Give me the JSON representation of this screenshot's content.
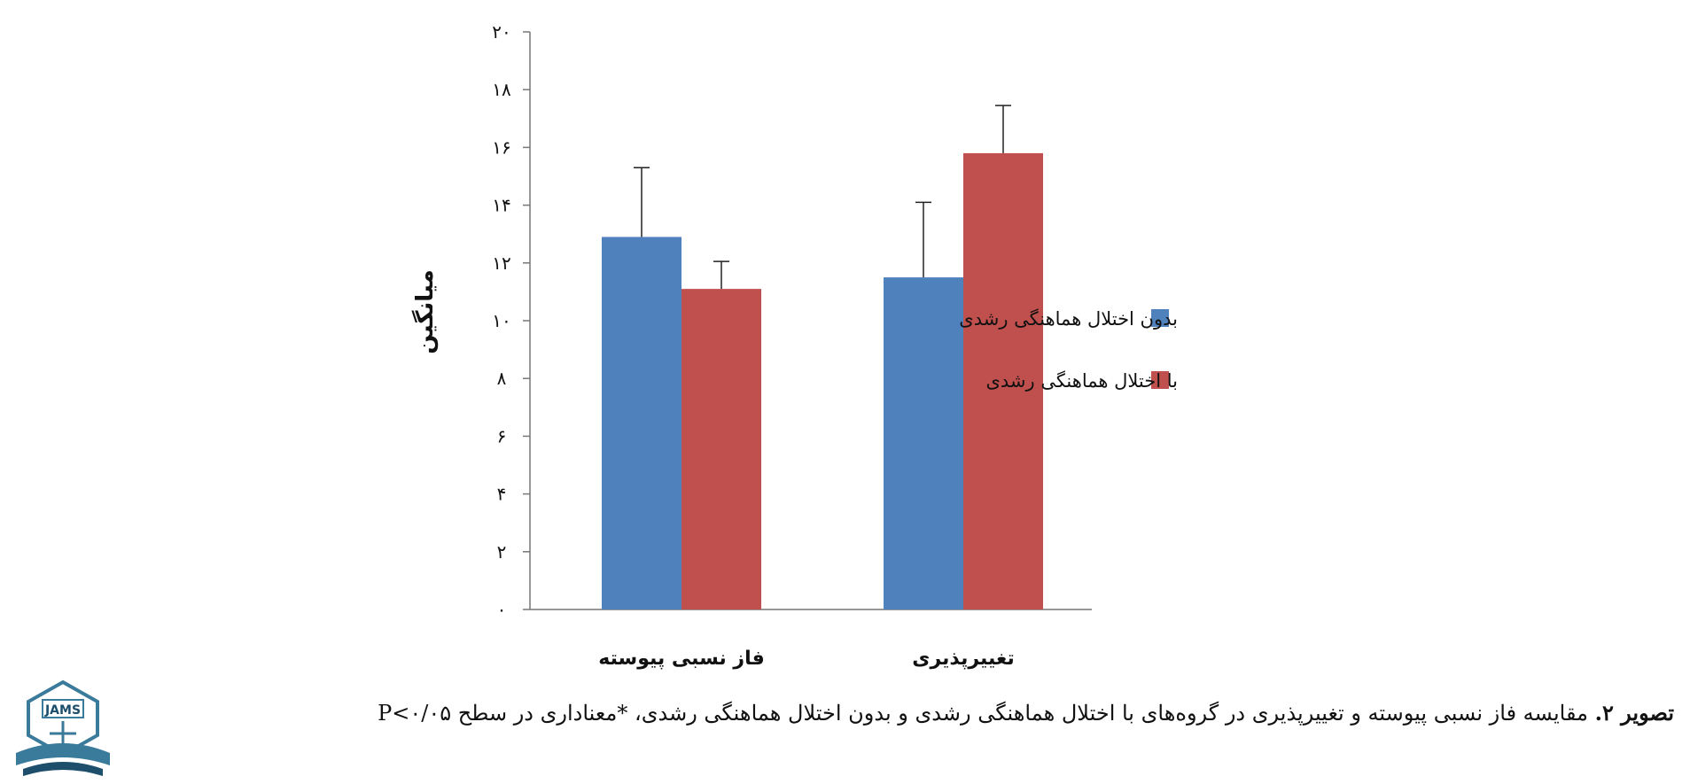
{
  "chart_data": {
    "type": "bar",
    "ylabel": "میانگین",
    "ylim": [
      0,
      20
    ],
    "yticks": [
      0,
      2,
      4,
      6,
      8,
      10,
      12,
      14,
      16,
      18,
      20
    ],
    "ytick_labels": [
      "۰",
      "۲",
      "۴",
      "۶",
      "۸",
      "۱۰",
      "۱۲",
      "۱۴",
      "۱۶",
      "۱۸",
      "۲۰"
    ],
    "categories": [
      "فاز نسبی پیوسته",
      "تغییرپذیری"
    ],
    "series": [
      {
        "name": "بدون اختلال هماهنگی رشدی",
        "color": "#4F81BD",
        "values": [
          12.9,
          11.5
        ],
        "error": [
          2.4,
          2.6
        ]
      },
      {
        "name": "با اختلال هماهنگی رشدی",
        "color": "#C0504D",
        "values": [
          11.1,
          15.8
        ],
        "error": [
          0.95,
          1.65
        ]
      }
    ],
    "legend_position": "right",
    "grid": false
  },
  "caption": {
    "label": "تصویر ۲.",
    "text": " مقایسه فاز نسبی پیوسته و تغییرپذیری در گروه‌های با اختلال هماهنگی رشدی و بدون اختلال هماهنگی رشدی، *معناداری در سطح P<۰/۰۵"
  },
  "logo": {
    "text": "JAMS"
  }
}
